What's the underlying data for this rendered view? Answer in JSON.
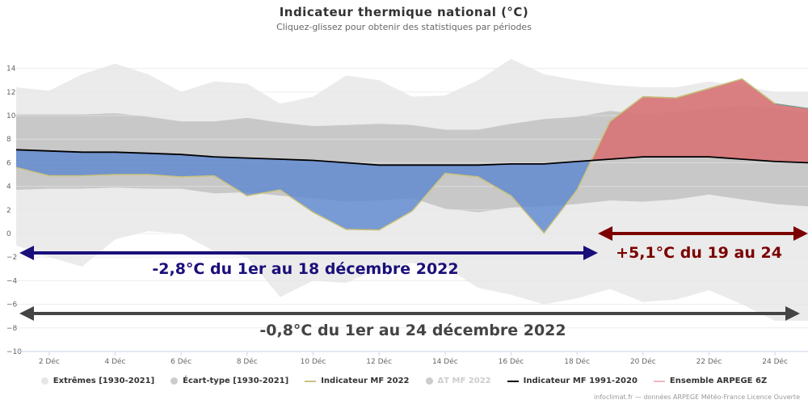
{
  "header": {
    "title": "Indicateur thermique national (°C)",
    "subtitle": "Cliquez-glissez pour obtenir des statistiques par périodes"
  },
  "annotations": {
    "cold": "-2,8°C du 1er au 18 décembre 2022",
    "warm": "+5,1°C du 19 au 24",
    "total": "-0,8°C du 1er au 24 décembre 2022"
  },
  "legend": [
    {
      "label": "Extrêmes [1930-2021]",
      "symbol": "dot",
      "color": "#e6e6e6",
      "muted": false
    },
    {
      "label": "Écart-type [1930-2021]",
      "symbol": "dot",
      "color": "#cccccc",
      "muted": false
    },
    {
      "label": "Indicateur MF 2022",
      "symbol": "line",
      "color": "#c9c27a",
      "muted": false
    },
    {
      "label": "ΔT MF 2022",
      "symbol": "dot",
      "color": "#cccccc",
      "muted": true
    },
    {
      "label": "Indicateur MF 1991-2020",
      "symbol": "line",
      "color": "#000000",
      "muted": false
    },
    {
      "label": "Ensemble ARPEGE 6Z",
      "symbol": "line",
      "color": "#f2b6bf",
      "muted": false
    }
  ],
  "credits": "infoclimat.fr — données ARPEGE Météo-France Licence Ouverte",
  "colors": {
    "extremes": "#ebebeb",
    "stddev": "#c8c8c8",
    "cold_fill": "#5b86cf",
    "warm_fill": "#d77275",
    "indicator_2022": "#c9c27a",
    "normal": "#000000",
    "cold_arrow": "#1a0f7a",
    "warm_arrow": "#7b0000",
    "total_arrow": "#444444"
  },
  "chart_data": {
    "type": "area",
    "title": "Indicateur thermique national (°C)",
    "subtitle": "Cliquez-glissez pour obtenir des statistiques par périodes",
    "x": [
      1,
      2,
      3,
      4,
      5,
      6,
      7,
      8,
      9,
      10,
      11,
      12,
      13,
      14,
      15,
      16,
      17,
      18,
      19,
      20,
      21,
      22,
      23,
      24,
      25
    ],
    "x_tick_labels": [
      "2 Déc",
      "4 Déc",
      "6 Déc",
      "8 Déc",
      "10 Déc",
      "12 Déc",
      "14 Déc",
      "16 Déc",
      "18 Déc",
      "20 Déc",
      "22 Déc",
      "24 Déc"
    ],
    "x_tick_values": [
      2,
      4,
      6,
      8,
      10,
      12,
      14,
      16,
      18,
      20,
      22,
      24
    ],
    "xlim": [
      1,
      25
    ],
    "ylim": [
      -10,
      15
    ],
    "y_ticks": [
      -10,
      -8,
      -6,
      -4,
      -2,
      0,
      2,
      4,
      6,
      8,
      10,
      12,
      14
    ],
    "grid": "horizontal",
    "extremes_upper": [
      12.4,
      12.1,
      13.5,
      14.4,
      13.5,
      12.0,
      12.9,
      12.7,
      11.0,
      11.6,
      13.4,
      13.0,
      11.6,
      11.7,
      13.0,
      14.8,
      13.5,
      13.0,
      12.6,
      12.4,
      12.4,
      12.9,
      12.5,
      12.0,
      12.0
    ],
    "extremes_lower": [
      -1.0,
      -2.0,
      -2.8,
      -0.5,
      0.2,
      0.0,
      -1.5,
      -2.0,
      -5.4,
      -4.0,
      -4.2,
      -3.0,
      -2.5,
      -2.8,
      -4.6,
      -5.2,
      -6.0,
      -5.5,
      -4.7,
      -5.8,
      -5.6,
      -4.8,
      -6.0,
      -7.4,
      -7.4
    ],
    "stddev_upper": [
      10.1,
      10.1,
      10.1,
      10.2,
      9.9,
      9.5,
      9.5,
      9.8,
      9.4,
      9.1,
      9.2,
      9.3,
      9.2,
      8.8,
      8.8,
      9.3,
      9.7,
      9.9,
      10.4,
      10.1,
      10.3,
      10.6,
      10.8,
      10.6,
      10.2
    ],
    "stddev_lower": [
      3.7,
      3.8,
      3.8,
      3.9,
      3.8,
      3.8,
      3.4,
      3.5,
      3.2,
      3.0,
      2.7,
      2.8,
      3.0,
      2.1,
      1.8,
      2.2,
      2.3,
      2.5,
      2.8,
      2.7,
      2.9,
      3.3,
      2.9,
      2.5,
      2.3
    ],
    "series": [
      {
        "name": "Indicateur MF 2022",
        "values": [
          5.6,
          4.9,
          4.9,
          5.0,
          5.0,
          4.8,
          4.9,
          3.2,
          3.7,
          1.8,
          0.35,
          0.3,
          1.9,
          5.1,
          4.8,
          3.2,
          0.05,
          3.7,
          9.5,
          11.6,
          11.5,
          12.3,
          13.1,
          11.0,
          null
        ]
      },
      {
        "name": "Indicateur MF 1991-2020",
        "values": [
          7.1,
          7.0,
          6.9,
          6.9,
          6.8,
          6.7,
          6.5,
          6.4,
          6.3,
          6.2,
          6.0,
          5.8,
          5.8,
          5.8,
          5.8,
          5.9,
          5.9,
          6.1,
          6.3,
          6.5,
          6.5,
          6.5,
          6.3,
          6.1,
          6.0
        ]
      },
      {
        "name": "Ensemble ARPEGE 6Z",
        "values": [
          null,
          null,
          null,
          null,
          null,
          null,
          null,
          null,
          null,
          null,
          null,
          null,
          null,
          null,
          null,
          null,
          null,
          null,
          9.5,
          11.6,
          11.5,
          12.3,
          13.1,
          11.0,
          10.6
        ]
      }
    ]
  }
}
